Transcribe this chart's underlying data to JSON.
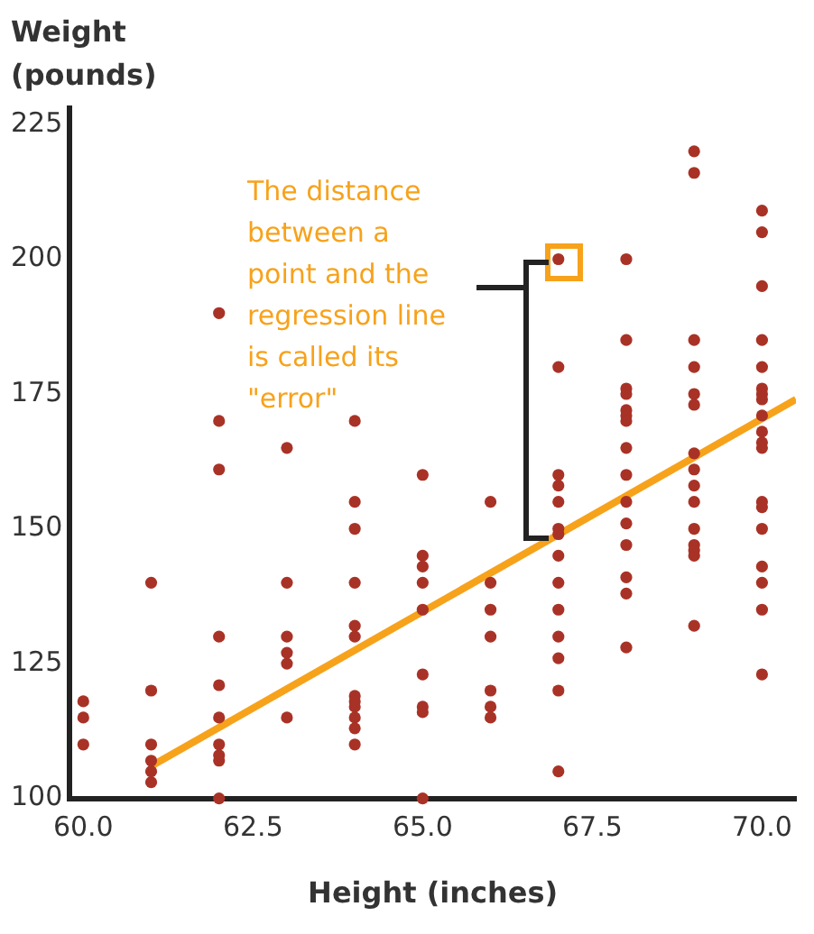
{
  "chart_data": {
    "type": "scatter",
    "xlabel": "Height (inches)",
    "ylabel": "Weight (pounds)",
    "xlim": [
      59.8,
      70.5
    ],
    "ylim": [
      100,
      228
    ],
    "xticks": [
      {
        "value": 60,
        "label": "60.0"
      },
      {
        "value": 62.5,
        "label": "62.5"
      },
      {
        "value": 65,
        "label": "65.0"
      },
      {
        "value": 67.5,
        "label": "67.5"
      },
      {
        "value": 70,
        "label": "70.0"
      }
    ],
    "yticks": [
      100,
      125,
      150,
      175,
      200,
      225
    ],
    "grid": false,
    "legend": false,
    "annotations": [
      "The distance between a point and the regression line is called its \"error\""
    ],
    "series": [
      {
        "type": "scatter",
        "color": "#a93226",
        "marker": "circle",
        "x": [
          60,
          60,
          60,
          61,
          61,
          61,
          61,
          61,
          61,
          62,
          62,
          62,
          62,
          62,
          62,
          62,
          62,
          62,
          62,
          63,
          63,
          63,
          63,
          63,
          63,
          64,
          64,
          64,
          64,
          64,
          64,
          64,
          64,
          64,
          64,
          64,
          64,
          65,
          65,
          65,
          65,
          65,
          65,
          65,
          65,
          65,
          66,
          66,
          66,
          66,
          66,
          66,
          66,
          67,
          67,
          67,
          67,
          67,
          67,
          67,
          67,
          67,
          67,
          67,
          67,
          67,
          67,
          68,
          68,
          68,
          68,
          68,
          68,
          68,
          68,
          68,
          68,
          68,
          68,
          68,
          68,
          68,
          69,
          69,
          69,
          69,
          69,
          69,
          69,
          69,
          69,
          69,
          69,
          69,
          69,
          69,
          69,
          70,
          70,
          70,
          70,
          70,
          70,
          70,
          70,
          70,
          70,
          70,
          70,
          70,
          70,
          70,
          70,
          70,
          70,
          70
        ],
        "values": [
          118,
          115,
          110,
          140,
          120,
          110,
          107,
          105,
          103,
          190,
          170,
          161,
          130,
          121,
          115,
          110,
          108,
          107,
          100,
          165,
          140,
          130,
          127,
          125,
          115,
          170,
          155,
          150,
          140,
          132,
          130,
          119,
          118,
          117,
          115,
          113,
          110,
          160,
          145,
          143,
          140,
          135,
          123,
          117,
          116,
          100,
          155,
          140,
          135,
          130,
          120,
          117,
          115,
          200,
          180,
          160,
          158,
          155,
          150,
          149,
          145,
          140,
          135,
          130,
          126,
          120,
          105,
          200,
          185,
          176,
          175,
          172,
          171,
          170,
          165,
          160,
          155,
          151,
          147,
          141,
          138,
          128,
          220,
          216,
          185,
          180,
          175,
          173,
          164,
          161,
          158,
          155,
          150,
          147,
          146,
          145,
          132,
          209,
          205,
          195,
          185,
          180,
          176,
          175,
          174,
          171,
          168,
          166,
          165,
          155,
          154,
          150,
          143,
          140,
          135,
          123
        ]
      },
      {
        "type": "line",
        "color": "#f7a21b",
        "marker": "none",
        "x": [
          61,
          70.5
        ],
        "values": [
          106,
          174
        ]
      }
    ]
  }
}
